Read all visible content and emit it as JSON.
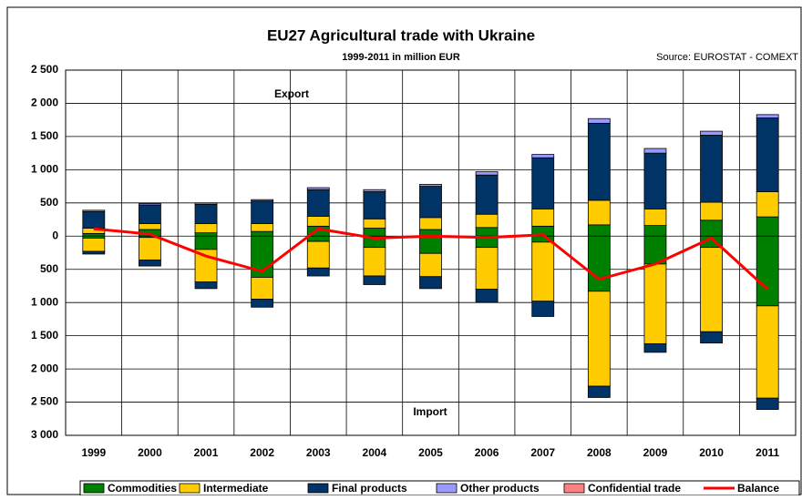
{
  "chart_data": {
    "type": "stacked-bar-line",
    "title": "EU27 Agricultural trade with Ukraine",
    "subtitle": "1999-2011 in million EUR",
    "source": "Source: EUROSTAT - COMEXT",
    "annotations": [
      "Export",
      "Import"
    ],
    "categories": [
      "1999",
      "2000",
      "2001",
      "2002",
      "2003",
      "2004",
      "2005",
      "2006",
      "2007",
      "2008",
      "2009",
      "2010",
      "2011"
    ],
    "series": [
      {
        "name": "Commodities",
        "color": "#008000",
        "export": [
          40,
          100,
          50,
          70,
          150,
          120,
          100,
          130,
          150,
          170,
          160,
          240,
          290
        ],
        "import": [
          -30,
          -20,
          -200,
          -620,
          -80,
          -170,
          -260,
          -170,
          -90,
          -830,
          -420,
          -170,
          -1050
        ]
      },
      {
        "name": "Intermediate",
        "color": "#ffcc00",
        "export": [
          80,
          90,
          140,
          120,
          150,
          140,
          180,
          200,
          260,
          370,
          250,
          270,
          380
        ],
        "import": [
          -200,
          -340,
          -490,
          -330,
          -400,
          -430,
          -350,
          -630,
          -890,
          -1430,
          -1200,
          -1270,
          -1390
        ]
      },
      {
        "name": "Final products",
        "color": "#003366",
        "export": [
          250,
          280,
          290,
          340,
          400,
          410,
          470,
          590,
          770,
          1160,
          840,
          1010,
          1110
        ],
        "import": [
          -40,
          -90,
          -100,
          -120,
          -120,
          -130,
          -180,
          -190,
          -230,
          -170,
          -130,
          -170,
          -170
        ]
      },
      {
        "name": "Other products",
        "color": "#9999ff",
        "export": [
          20,
          20,
          20,
          20,
          30,
          30,
          30,
          50,
          50,
          70,
          70,
          60,
          50
        ],
        "import": [
          0,
          0,
          0,
          0,
          0,
          0,
          0,
          0,
          0,
          0,
          0,
          0,
          0
        ]
      },
      {
        "name": "Confidential trade",
        "color": "#ff8080",
        "export": [
          0,
          0,
          0,
          0,
          0,
          0,
          0,
          0,
          0,
          0,
          0,
          0,
          0
        ],
        "import": [
          0,
          0,
          0,
          0,
          0,
          0,
          0,
          0,
          0,
          0,
          0,
          0,
          0
        ]
      }
    ],
    "balance": {
      "name": "Balance",
      "color": "#ff0000",
      "values": [
        110,
        30,
        -300,
        -530,
        110,
        -30,
        0,
        -20,
        20,
        -650,
        -420,
        -30,
        -800
      ]
    },
    "ylim": [
      -3000,
      2500
    ],
    "yticks": [
      {
        "value": 2500,
        "label": "2 500"
      },
      {
        "value": 2000,
        "label": "2 000"
      },
      {
        "value": 1500,
        "label": "1 500"
      },
      {
        "value": 1000,
        "label": "1 000"
      },
      500,
      0,
      {
        "value": -500,
        "label": "500"
      },
      {
        "value": -1000,
        "label": "1 000"
      },
      {
        "value": -1500,
        "label": "1 500"
      },
      {
        "value": -2000,
        "label": "2 000"
      },
      {
        "value": -2500,
        "label": "2 500"
      },
      {
        "value": -3000,
        "label": "3 000"
      }
    ],
    "grid": true
  }
}
